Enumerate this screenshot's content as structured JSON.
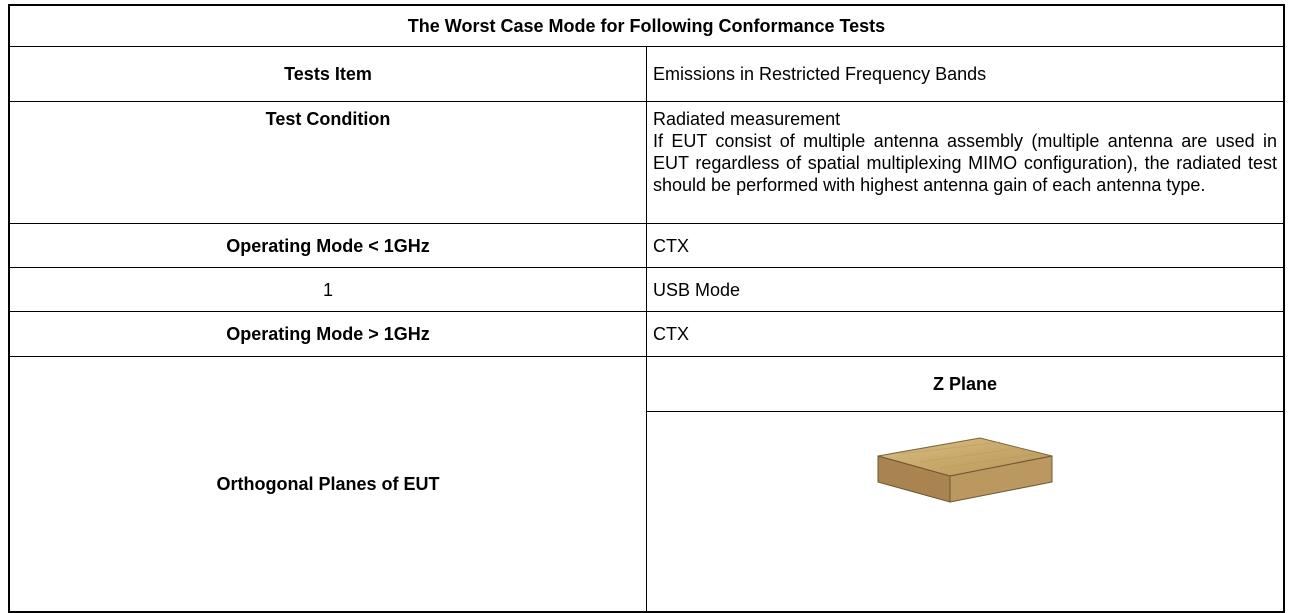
{
  "table": {
    "title": "The Worst Case Mode for Following Conformance Tests",
    "rows": [
      {
        "label": "Tests Item",
        "value": [
          "Emissions in Restricted Frequency Bands"
        ]
      },
      {
        "label": "Test Condition",
        "value": [
          "Radiated measurement",
          "If EUT consist of multiple antenna assembly (multiple antenna are used in EUT regardless of spatial multiplexing MIMO configuration), the radiated test should be performed with highest antenna gain of each antenna type."
        ]
      },
      {
        "label": "Operating Mode < 1GHz",
        "value": [
          "CTX"
        ]
      },
      {
        "label": "1",
        "value": [
          "USB Mode"
        ]
      },
      {
        "label": "Operating Mode > 1GHz",
        "value": [
          "CTX"
        ]
      }
    ],
    "planes": {
      "label": "Orthogonal Planes of EUT",
      "header": "Z Plane"
    }
  }
}
